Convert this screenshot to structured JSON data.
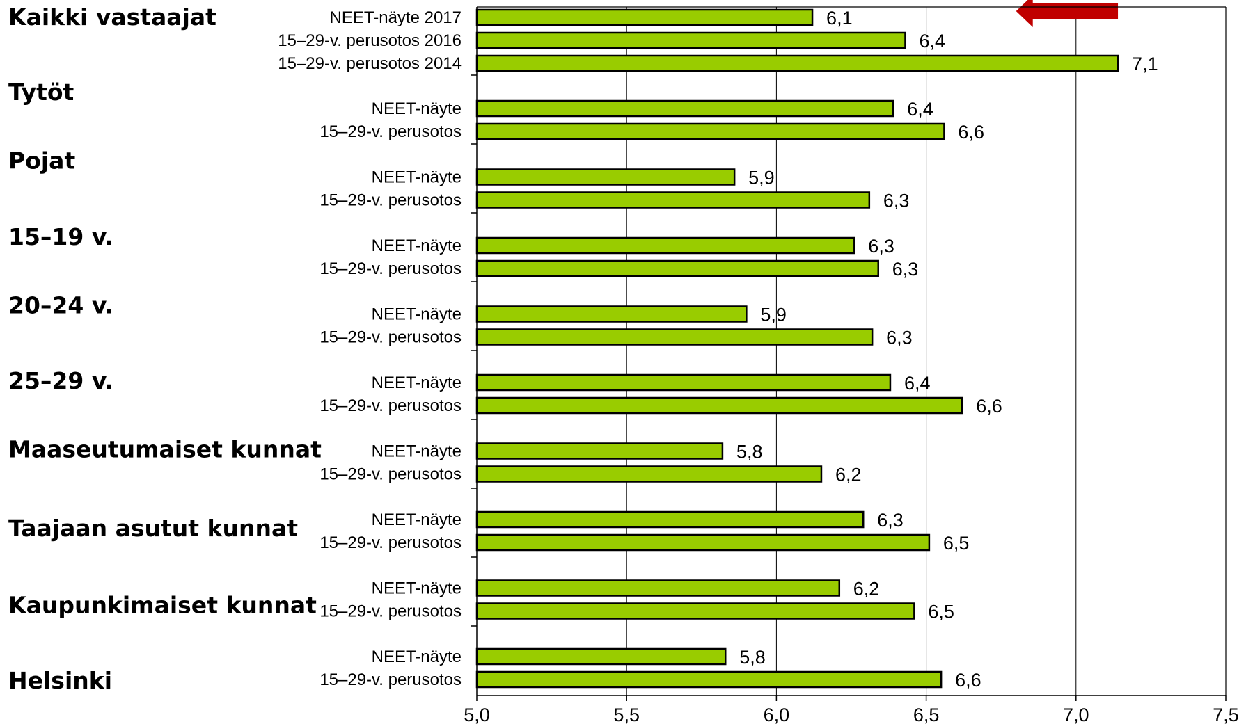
{
  "chart_data": {
    "type": "bar",
    "orientation": "horizontal",
    "xlim": [
      5.0,
      7.5
    ],
    "x_ticks": [
      5.0,
      5.5,
      6.0,
      6.5,
      7.0,
      7.5
    ],
    "x_tick_labels": [
      "5,0",
      "5,5",
      "6,0",
      "6,5",
      "7,0",
      "7,5"
    ],
    "grid": "vertical",
    "bar_color": "#99cc00",
    "bar_edge_color": "#000000",
    "arrow_color": "#c00000",
    "annotation": {
      "type": "arrow",
      "direction": "left",
      "x_from": 7.14,
      "x_to": 6.8
    },
    "groups": [
      {
        "label": "Kaikki vastaajat",
        "bars": [
          {
            "label": "NEET-näyte 2017",
            "value": 6.12,
            "value_label": "6,1"
          },
          {
            "label": "15–29-v. perusotos 2016",
            "value": 6.43,
            "value_label": "6,4"
          },
          {
            "label": "15–29-v. perusotos 2014",
            "value": 7.14,
            "value_label": "7,1"
          }
        ]
      },
      {
        "label": "Tytöt",
        "bars": [
          {
            "label": "NEET-näyte",
            "value": 6.39,
            "value_label": "6,4"
          },
          {
            "label": "15–29-v. perusotos",
            "value": 6.56,
            "value_label": "6,6"
          }
        ]
      },
      {
        "label": "Pojat",
        "bars": [
          {
            "label": "NEET-näyte",
            "value": 5.86,
            "value_label": "5,9"
          },
          {
            "label": "15–29-v. perusotos",
            "value": 6.31,
            "value_label": "6,3"
          }
        ]
      },
      {
        "label": "15–19 v.",
        "bars": [
          {
            "label": "NEET-näyte",
            "value": 6.26,
            "value_label": "6,3"
          },
          {
            "label": "15–29-v. perusotos",
            "value": 6.34,
            "value_label": "6,3"
          }
        ]
      },
      {
        "label": "20–24 v.",
        "bars": [
          {
            "label": "NEET-näyte",
            "value": 5.9,
            "value_label": "5,9"
          },
          {
            "label": "15–29-v. perusotos",
            "value": 6.32,
            "value_label": "6,3"
          }
        ]
      },
      {
        "label": "25–29 v.",
        "bars": [
          {
            "label": "NEET-näyte",
            "value": 6.38,
            "value_label": "6,4"
          },
          {
            "label": "15–29-v. perusotos",
            "value": 6.62,
            "value_label": "6,6"
          }
        ]
      },
      {
        "label": "Maaseutumaiset kunnat",
        "bars": [
          {
            "label": "NEET-näyte",
            "value": 5.82,
            "value_label": "5,8"
          },
          {
            "label": "15–29-v. perusotos",
            "value": 6.15,
            "value_label": "6,2"
          }
        ]
      },
      {
        "label": "Taajaan asutut kunnat",
        "bars": [
          {
            "label": "NEET-näyte",
            "value": 6.29,
            "value_label": "6,3"
          },
          {
            "label": "15–29-v. perusotos",
            "value": 6.51,
            "value_label": "6,5"
          }
        ]
      },
      {
        "label": "Kaupunkimaiset kunnat",
        "bars": [
          {
            "label": "NEET-näyte",
            "value": 6.21,
            "value_label": "6,2"
          },
          {
            "label": "15–29-v. perusotos",
            "value": 6.46,
            "value_label": "6,5"
          }
        ]
      },
      {
        "label": "Helsinki",
        "bars": [
          {
            "label": "NEET-näyte",
            "value": 5.83,
            "value_label": "5,8"
          },
          {
            "label": "15–29-v. perusotos",
            "value": 6.55,
            "value_label": "6,6"
          }
        ]
      }
    ]
  }
}
